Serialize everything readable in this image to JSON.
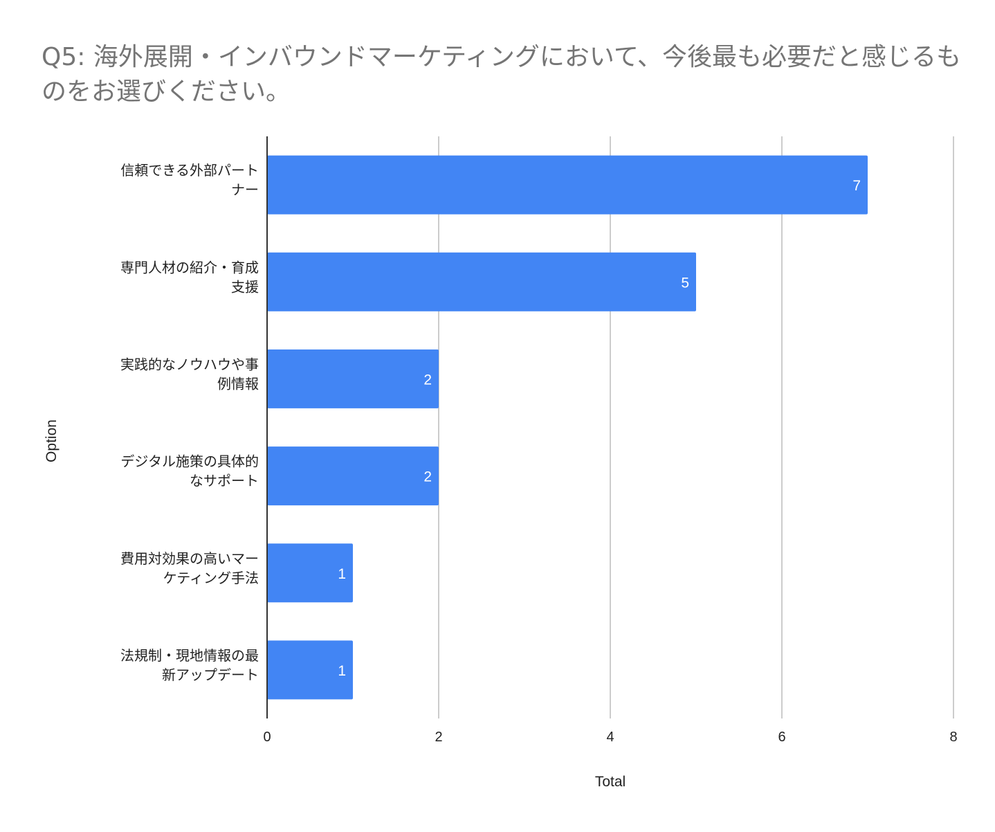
{
  "chart_data": {
    "type": "bar",
    "orientation": "horizontal",
    "title": "Q5: 海外展開・インバウンドマーケティングにおいて、今後最も必要だと感じるものをお選びください。",
    "xlabel": "Total",
    "ylabel": "Option",
    "categories": [
      [
        "信頼できる外部パート",
        "ナー"
      ],
      [
        "専門人材の紹介・育成",
        "支援"
      ],
      [
        "実践的なノウハウや事",
        "例情報"
      ],
      [
        "デジタル施策の具体的",
        "なサポート"
      ],
      [
        "費用対効果の高いマー",
        "ケティング手法"
      ],
      [
        "法規制・現地情報の最",
        "新アップデート"
      ]
    ],
    "values": [
      7,
      5,
      2,
      2,
      1,
      1
    ],
    "xlim": [
      0,
      8
    ],
    "xticks": [
      0,
      2,
      4,
      6,
      8
    ],
    "grid": true,
    "legend": "none",
    "data_labels": true
  },
  "colors": {
    "bar": "#4285f4",
    "grid": "#cccccc",
    "axis": "#333333",
    "title": "#757575",
    "text": "#222222",
    "data_label": "#ffffff"
  }
}
